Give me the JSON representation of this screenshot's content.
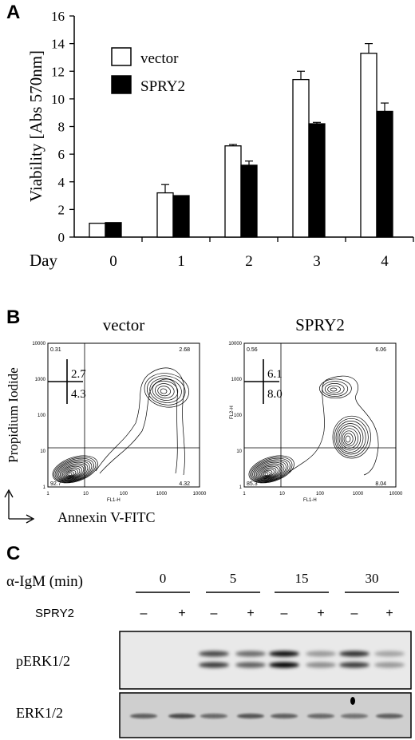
{
  "panels": {
    "a": "A",
    "b": "B",
    "c": "C"
  },
  "panel_a": {
    "ylabel": "Viability [Abs 570nm]",
    "xlabel_prefix": "Day",
    "legend": [
      "vector",
      "SPRY2"
    ]
  },
  "chart_data": {
    "type": "bar",
    "categories": [
      "0",
      "1",
      "2",
      "3",
      "4"
    ],
    "series": [
      {
        "name": "vector",
        "values": [
          1.0,
          3.2,
          6.6,
          11.4,
          13.3
        ],
        "errors": [
          0.05,
          0.6,
          0.1,
          0.6,
          0.7
        ],
        "color": "#ffffff"
      },
      {
        "name": "SPRY2",
        "values": [
          1.05,
          3.0,
          5.2,
          8.2,
          9.1
        ],
        "errors": [
          0.05,
          0.05,
          0.3,
          0.1,
          0.6
        ],
        "color": "#000000"
      }
    ],
    "ylim": [
      0,
      16
    ],
    "yticks": [
      "0",
      "2",
      "4",
      "6",
      "8",
      "10",
      "12",
      "14",
      "16"
    ],
    "xlabel": "Day",
    "ylabel": "Viability [Abs 570nm]",
    "grid": false,
    "legend_position": "top-left"
  },
  "panel_b": {
    "ylabel": "Propidium Iodide",
    "xlabel": "Annexin V-FITC",
    "ticks": [
      "1",
      "10",
      "100",
      "1000",
      "10000"
    ],
    "plots": [
      {
        "title": "vector",
        "q_ul": "0.31",
        "q_ur": "2.68",
        "q_ll": "92.7",
        "q_lr": "4.32",
        "inset_top": "2.7",
        "inset_bottom": "4.3",
        "x_axis": "FL1-H",
        "y_axis": ""
      },
      {
        "title": "SPRY2",
        "q_ul": "0.56",
        "q_ur": "6.06",
        "q_ll": "85.3",
        "q_lr": "8.04",
        "inset_top": "6.1",
        "inset_bottom": "8.0",
        "x_axis": "FL1-H",
        "y_axis": "FL2-H"
      }
    ]
  },
  "panel_c": {
    "treatment_label": "α-IgM (min)",
    "timepoints": [
      "0",
      "5",
      "15",
      "30"
    ],
    "spry2_label": "SPRY2",
    "signs": [
      "–",
      "+",
      "–",
      "+",
      "–",
      "+",
      "–",
      "+"
    ],
    "blot_labels": [
      "pERK1/2",
      "ERK1/2"
    ]
  }
}
